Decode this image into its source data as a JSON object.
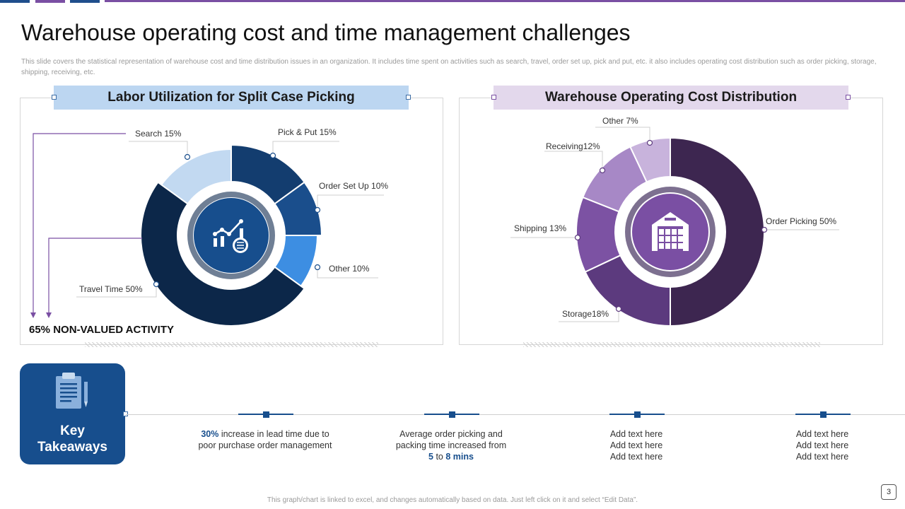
{
  "slide": {
    "title": "Warehouse operating cost and time management challenges",
    "subtitle": "This slide covers the statistical representation of warehouse cost and time distribution issues in an organization. It includes time spent on activities such as search, travel, order set up, pick and put, etc. it also includes operating cost distribution such as order picking, storage, shipping, receiving, etc.",
    "footer": "This graph/chart is linked to excel, and changes automatically based on data. Just left click on it and select “Edit Data”.",
    "page_number": "3",
    "non_valued_activity": "65% NON-VALUED ACTIVITY"
  },
  "chart_data": [
    {
      "type": "pie",
      "title": "Labor Utilization for Split Case Picking",
      "center_icon": "analytics-settings-icon",
      "slices": [
        {
          "name": "Pick & Put",
          "value": 15,
          "label": "Pick & Put 15%",
          "color": "#133d6f"
        },
        {
          "name": "Order Set Up",
          "value": 10,
          "label": "Order Set Up 10%",
          "color": "#1a4e8c"
        },
        {
          "name": "Other",
          "value": 10,
          "label": "Other 10%",
          "color": "#3d8ee2"
        },
        {
          "name": "Travel Time",
          "value": 50,
          "label": "Travel Time 50%",
          "color": "#0c2749"
        },
        {
          "name": "Search",
          "value": 15,
          "label": "Search 15%",
          "color": "#c2d9f1"
        }
      ]
    },
    {
      "type": "pie",
      "title": "Warehouse Operating Cost Distribution",
      "center_icon": "warehouse-icon",
      "slices": [
        {
          "name": "Order Picking",
          "value": 50,
          "label": "Order Picking 50%",
          "color": "#3d2650"
        },
        {
          "name": "Storage",
          "value": 18,
          "label": "Storage18%",
          "color": "#5c3a7e"
        },
        {
          "name": "Shipping",
          "value": 13,
          "label": "Shipping 13%",
          "color": "#7c52a3"
        },
        {
          "name": "Receiving",
          "value": 12,
          "label": "Receiving12%",
          "color": "#a788c6"
        },
        {
          "name": "Other",
          "value": 7,
          "label": "Other 7%",
          "color": "#c8b3dc"
        }
      ]
    }
  ],
  "takeaways": {
    "title_line1": "Key",
    "title_line2": "Takeaways",
    "items": [
      {
        "strong": "30%",
        "text": " increase in lead time due to poor purchase order management"
      },
      {
        "pre": "Average order picking and packing time increased from ",
        "v1": "5",
        "mid": " to ",
        "v2": "8 mins"
      },
      {
        "lines": [
          "Add text here",
          "Add text here",
          "Add text here"
        ]
      },
      {
        "lines": [
          "Add text here",
          "Add text here",
          "Add text here"
        ]
      }
    ]
  },
  "colors": {
    "blue_accent": "#174e8d",
    "purple_accent": "#7a4fa3",
    "blue_header_bg": "#bcd6f1",
    "purple_header_bg": "#e3d8ec"
  }
}
